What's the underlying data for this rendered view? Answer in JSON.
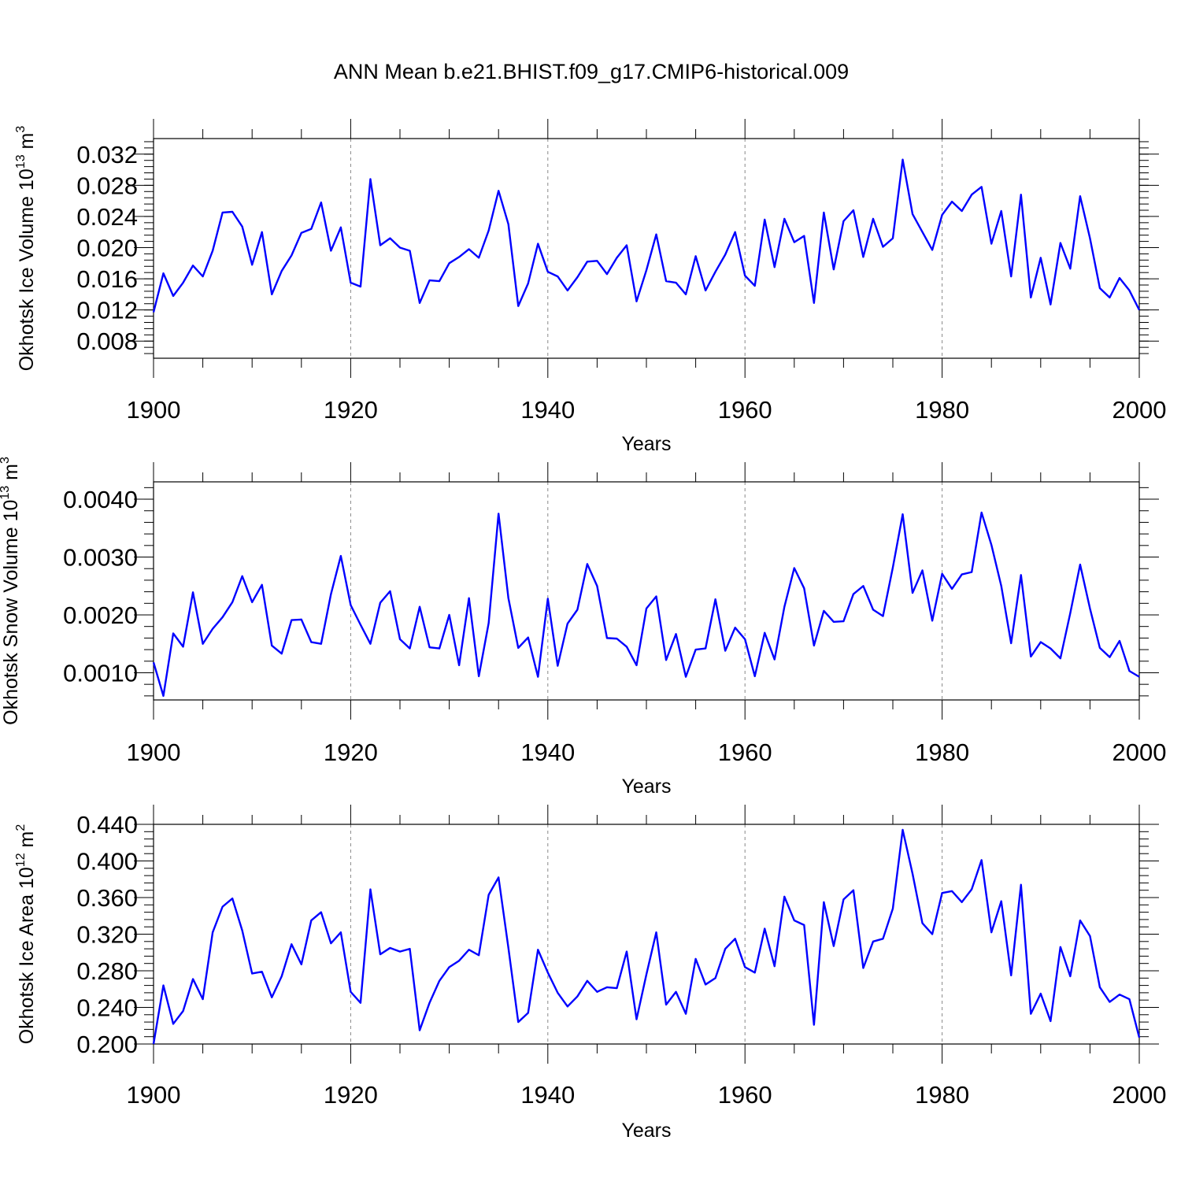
{
  "title": "ANN Mean b.e21.BHIST.f09_g17.CMIP6-historical.009",
  "chart_data": [
    {
      "type": "line",
      "ylabel": "Okhotsk Ice Volume 10",
      "ylabel_exp": "13",
      "ylabel_unit": "m",
      "ylabel_unit_exp": "3",
      "xlabel": "Years",
      "xlim": [
        1900,
        2000
      ],
      "ylim": [
        0.0058,
        0.034
      ],
      "x_ticks": [
        1900,
        1920,
        1940,
        1960,
        1980,
        2000
      ],
      "x_tick_labels": [
        "1900",
        "1920",
        "1940",
        "1960",
        "1980",
        "2000"
      ],
      "y_ticks": [
        0.008,
        0.012,
        0.016,
        0.02,
        0.024,
        0.028,
        0.032
      ],
      "y_tick_labels": [
        "0.008",
        "0.012",
        "0.016",
        "0.020",
        "0.024",
        "0.028",
        "0.032"
      ],
      "y_minor_step": 0.0008,
      "grid": "vertical dashed",
      "color": "#0000ff",
      "x_start": 1900,
      "values": [
        0.0117,
        0.0167,
        0.0138,
        0.0155,
        0.0177,
        0.0163,
        0.0196,
        0.0245,
        0.0246,
        0.0227,
        0.0178,
        0.022,
        0.014,
        0.017,
        0.019,
        0.0219,
        0.0224,
        0.0258,
        0.0196,
        0.0226,
        0.0155,
        0.015,
        0.0288,
        0.0203,
        0.0212,
        0.02,
        0.0196,
        0.0129,
        0.0158,
        0.0157,
        0.018,
        0.0188,
        0.0198,
        0.0187,
        0.0222,
        0.0273,
        0.023,
        0.0125,
        0.0154,
        0.0205,
        0.0169,
        0.0163,
        0.0145,
        0.0162,
        0.0182,
        0.0183,
        0.0166,
        0.0187,
        0.0203,
        0.0131,
        0.0171,
        0.0217,
        0.0157,
        0.0155,
        0.014,
        0.0189,
        0.0145,
        0.0169,
        0.0191,
        0.022,
        0.0164,
        0.0151,
        0.0236,
        0.0175,
        0.0237,
        0.0207,
        0.0215,
        0.0129,
        0.0245,
        0.0172,
        0.0234,
        0.0248,
        0.0188,
        0.0237,
        0.0201,
        0.0212,
        0.0313,
        0.0243,
        0.022,
        0.0197,
        0.0242,
        0.0259,
        0.0247,
        0.0268,
        0.0278,
        0.0205,
        0.0247,
        0.0163,
        0.0268,
        0.0136,
        0.0187,
        0.0127,
        0.0206,
        0.0173,
        0.0266,
        0.0212,
        0.0148,
        0.0136,
        0.0161,
        0.0145,
        0.012
      ]
    },
    {
      "type": "line",
      "ylabel": "Okhotsk Snow Volume 10",
      "ylabel_exp": "13",
      "ylabel_unit": "m",
      "ylabel_unit_exp": "3",
      "xlabel": "Years",
      "xlim": [
        1900,
        2000
      ],
      "ylim": [
        0.00053,
        0.0043
      ],
      "x_ticks": [
        1900,
        1920,
        1940,
        1960,
        1980,
        2000
      ],
      "x_tick_labels": [
        "1900",
        "1920",
        "1940",
        "1960",
        "1980",
        "2000"
      ],
      "y_ticks": [
        0.001,
        0.002,
        0.003,
        0.004
      ],
      "y_tick_labels": [
        "0.0010",
        "0.0020",
        "0.0030",
        "0.0040"
      ],
      "y_minor_step": 0.0002,
      "grid": "vertical dashed",
      "color": "#0000ff",
      "x_start": 1900,
      "values": [
        0.00118,
        0.0006,
        0.00168,
        0.00145,
        0.00239,
        0.0015,
        0.00176,
        0.00196,
        0.00222,
        0.00267,
        0.00222,
        0.00252,
        0.00147,
        0.00133,
        0.00191,
        0.00192,
        0.00153,
        0.0015,
        0.00236,
        0.00302,
        0.00217,
        0.00183,
        0.0015,
        0.00221,
        0.00241,
        0.00158,
        0.00142,
        0.00214,
        0.00144,
        0.00142,
        0.002,
        0.00113,
        0.00229,
        0.00094,
        0.00186,
        0.00375,
        0.00229,
        0.00143,
        0.00161,
        0.00093,
        0.00228,
        0.00112,
        0.00185,
        0.00209,
        0.00288,
        0.0025,
        0.0016,
        0.00159,
        0.00145,
        0.00113,
        0.00211,
        0.00232,
        0.00122,
        0.00167,
        0.00093,
        0.0014,
        0.00142,
        0.00227,
        0.00138,
        0.00178,
        0.00158,
        0.00094,
        0.00169,
        0.00123,
        0.00214,
        0.00281,
        0.00246,
        0.00147,
        0.00207,
        0.00188,
        0.00189,
        0.00236,
        0.0025,
        0.00209,
        0.00198,
        0.00282,
        0.00374,
        0.00238,
        0.00277,
        0.0019,
        0.00271,
        0.00245,
        0.0027,
        0.00274,
        0.00377,
        0.00321,
        0.0025,
        0.00151,
        0.00269,
        0.00128,
        0.00153,
        0.00142,
        0.00125,
        0.00203,
        0.00287,
        0.00211,
        0.00143,
        0.00127,
        0.00155,
        0.00103,
        0.00093
      ]
    },
    {
      "type": "line",
      "ylabel": "Okhotsk Ice Area 10",
      "ylabel_exp": "12",
      "ylabel_unit": "m",
      "ylabel_unit_exp": "2",
      "xlabel": "Years",
      "xlim": [
        1900,
        2000
      ],
      "ylim": [
        0.2,
        0.44
      ],
      "x_ticks": [
        1900,
        1920,
        1940,
        1960,
        1980,
        2000
      ],
      "x_tick_labels": [
        "1900",
        "1920",
        "1940",
        "1960",
        "1980",
        "2000"
      ],
      "y_ticks": [
        0.2,
        0.24,
        0.28,
        0.32,
        0.36,
        0.4,
        0.44
      ],
      "y_tick_labels": [
        "0.200",
        "0.240",
        "0.280",
        "0.320",
        "0.360",
        "0.400",
        "0.440"
      ],
      "y_minor_step": 0.008,
      "grid": "vertical dashed",
      "color": "#0000ff",
      "x_start": 1900,
      "values": [
        0.2,
        0.264,
        0.222,
        0.236,
        0.271,
        0.249,
        0.322,
        0.35,
        0.359,
        0.324,
        0.277,
        0.279,
        0.251,
        0.274,
        0.309,
        0.287,
        0.335,
        0.344,
        0.31,
        0.322,
        0.257,
        0.245,
        0.369,
        0.298,
        0.305,
        0.301,
        0.304,
        0.215,
        0.245,
        0.269,
        0.284,
        0.291,
        0.303,
        0.297,
        0.363,
        0.382,
        0.305,
        0.224,
        0.234,
        0.303,
        0.278,
        0.256,
        0.241,
        0.252,
        0.269,
        0.257,
        0.262,
        0.261,
        0.301,
        0.227,
        0.276,
        0.322,
        0.243,
        0.257,
        0.233,
        0.293,
        0.265,
        0.272,
        0.304,
        0.315,
        0.284,
        0.278,
        0.326,
        0.285,
        0.361,
        0.335,
        0.33,
        0.221,
        0.355,
        0.307,
        0.358,
        0.368,
        0.283,
        0.312,
        0.315,
        0.348,
        0.434,
        0.386,
        0.332,
        0.32,
        0.365,
        0.367,
        0.355,
        0.369,
        0.401,
        0.322,
        0.356,
        0.275,
        0.374,
        0.233,
        0.255,
        0.225,
        0.306,
        0.274,
        0.335,
        0.318,
        0.262,
        0.246,
        0.254,
        0.249,
        0.207
      ]
    }
  ]
}
